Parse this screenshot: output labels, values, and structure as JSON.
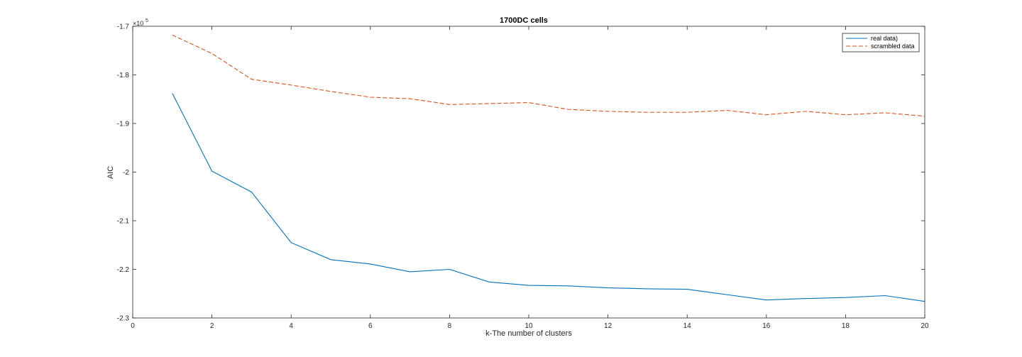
{
  "chart_data": {
    "type": "line",
    "title": "1700DC cells",
    "xlabel": "k-The number of clusters",
    "ylabel": "AIC",
    "y_exponent_base": "×10",
    "y_exponent_power": "5",
    "xlim": [
      0,
      20
    ],
    "ylim": [
      -2.3,
      -1.7
    ],
    "x_ticks": [
      0,
      2,
      4,
      6,
      8,
      10,
      12,
      14,
      16,
      18,
      20
    ],
    "y_ticks": [
      -2.3,
      -2.2,
      -2.1,
      -2.0,
      -1.9,
      -1.8,
      -1.7
    ],
    "x_tick_labels": [
      "0",
      "2",
      "4",
      "6",
      "8",
      "10",
      "12",
      "14",
      "16",
      "18",
      "20"
    ],
    "y_tick_labels": [
      "-2.3",
      "-2.2",
      "-2.1",
      "-2",
      "-1.9",
      "-1.8",
      "-1.7"
    ],
    "grid": false,
    "legend_position": "top-right",
    "x": [
      1,
      2,
      3,
      4,
      5,
      6,
      7,
      8,
      9,
      10,
      11,
      12,
      13,
      14,
      15,
      16,
      17,
      18,
      19,
      20
    ],
    "series": [
      {
        "name": "real data)",
        "color": "#0072bd",
        "style": "solid",
        "values": [
          -1.838,
          -1.998,
          -2.041,
          -2.145,
          -2.18,
          -2.189,
          -2.205,
          -2.2,
          -2.226,
          -2.233,
          -2.234,
          -2.238,
          -2.24,
          -2.241,
          -2.252,
          -2.263,
          -2.26,
          -2.258,
          -2.254,
          -2.266
        ]
      },
      {
        "name": "scrambled data",
        "color": "#d95319",
        "style": "dashed",
        "values": [
          -1.718,
          -1.756,
          -1.809,
          -1.821,
          -1.834,
          -1.846,
          -1.849,
          -1.861,
          -1.859,
          -1.857,
          -1.871,
          -1.875,
          -1.877,
          -1.877,
          -1.873,
          -1.882,
          -1.875,
          -1.882,
          -1.878,
          -1.885
        ]
      }
    ]
  }
}
